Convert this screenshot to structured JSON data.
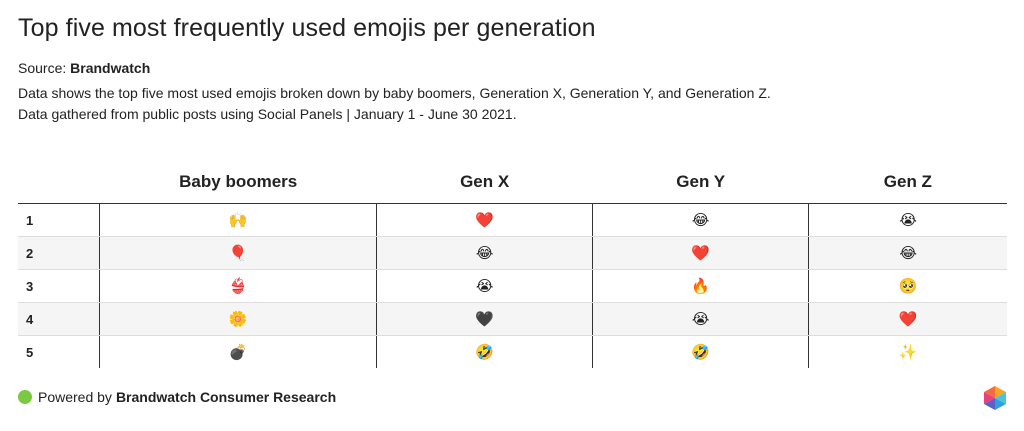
{
  "title": "Top five most frequently used emojis per generation",
  "source": {
    "label": "Source:",
    "name": "Brandwatch"
  },
  "description": [
    "Data shows the top five most used emojis broken down by baby boomers, Generation X, Generation Y, and Generation Z.",
    "Data gathered from public posts using Social Panels | January 1 - June 30 2021."
  ],
  "chart_data": {
    "type": "table",
    "columns": [
      "",
      "Baby boomers",
      "Gen X",
      "Gen Y",
      "Gen Z"
    ],
    "rows": [
      {
        "rank": "1",
        "baby_boomers": "🙌",
        "gen_x": "❤️",
        "gen_y": "😂",
        "gen_z": "😭"
      },
      {
        "rank": "2",
        "baby_boomers": "🎈",
        "gen_x": "😂",
        "gen_y": "❤️",
        "gen_z": "😂"
      },
      {
        "rank": "3",
        "baby_boomers": "👙",
        "gen_x": "😭",
        "gen_y": "🔥",
        "gen_z": "🥺"
      },
      {
        "rank": "4",
        "baby_boomers": "🌼",
        "gen_x": "🖤",
        "gen_y": "😭",
        "gen_z": "❤️"
      },
      {
        "rank": "5",
        "baby_boomers": "💣",
        "gen_x": "🤣",
        "gen_y": "🤣",
        "gen_z": "✨"
      }
    ]
  },
  "footer": {
    "prefix": "Powered by",
    "brand": "Brandwatch Consumer Research"
  },
  "colors": {
    "dot": "#7ac943",
    "row_alt": "#f5f5f5"
  },
  "icons": {
    "footer_dot": "green-dot-icon",
    "logo": "brandwatch-logo-icon"
  }
}
